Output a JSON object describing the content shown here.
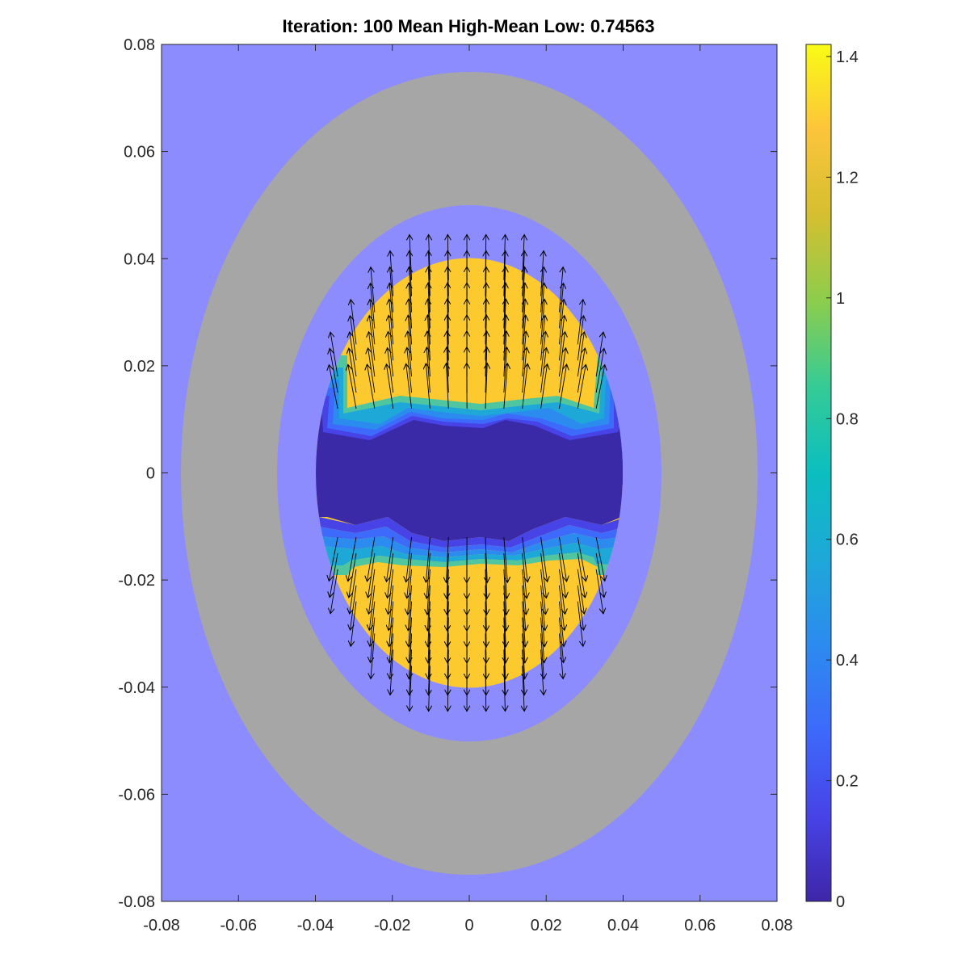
{
  "chart_data": {
    "type": "heatmap",
    "plot_kind": "filled-contour with quiver (vector field) overlay",
    "title": "Iteration: 100 Mean High-Mean Low: 0.74563",
    "xlabel": "",
    "ylabel": "",
    "xlim": [
      -0.08,
      0.08
    ],
    "ylim": [
      -0.08,
      0.08
    ],
    "x_ticks": [
      -0.08,
      -0.06,
      -0.04,
      -0.02,
      0,
      0.02,
      0.04,
      0.06,
      0.08
    ],
    "y_ticks": [
      -0.08,
      -0.06,
      -0.04,
      -0.02,
      0,
      0.02,
      0.04,
      0.06,
      0.08
    ],
    "x_tick_labels": [
      "-0.08",
      "-0.06",
      "-0.04",
      "-0.02",
      "0",
      "0.02",
      "0.04",
      "0.06",
      "0.08"
    ],
    "y_tick_labels": [
      "-0.08",
      "-0.06",
      "-0.04",
      "-0.02",
      "0",
      "0.02",
      "0.04",
      "0.06",
      "0.08"
    ],
    "grid": false,
    "colorbar": {
      "position": "right",
      "colormap": "parula",
      "range": [
        0,
        1.42
      ],
      "ticks": [
        0,
        0.2,
        0.4,
        0.6,
        0.8,
        1,
        1.2,
        1.4
      ],
      "tick_labels": [
        "0",
        "0.2",
        "0.4",
        "0.6",
        "0.8",
        "1",
        "1.2",
        "1.4"
      ]
    },
    "regions": [
      {
        "name": "background",
        "shape": "rectangle",
        "color": "#8c8cff"
      },
      {
        "name": "outer ring",
        "shape": "ellipse",
        "cx": 0,
        "cy": 0,
        "rx": 0.075,
        "ry": 0.075,
        "color": "#a6a6a6"
      },
      {
        "name": "gap ring",
        "shape": "ellipse",
        "cx": 0,
        "cy": 0,
        "rx": 0.05,
        "ry": 0.05,
        "color": "#8c8cff"
      },
      {
        "name": "core",
        "shape": "ellipse",
        "cx": 0,
        "cy": 0,
        "rx": 0.04,
        "ry": 0.04,
        "value": 0.02
      },
      {
        "name": "upper high region",
        "y_min": 0.014,
        "value": 1.3
      },
      {
        "name": "lower high region",
        "y_max": -0.014,
        "value": 1.3
      }
    ],
    "vector_field": {
      "description": "arrows point outward away from the low-valued central band in both yellow regions",
      "arrow_color": "#000000"
    }
  }
}
